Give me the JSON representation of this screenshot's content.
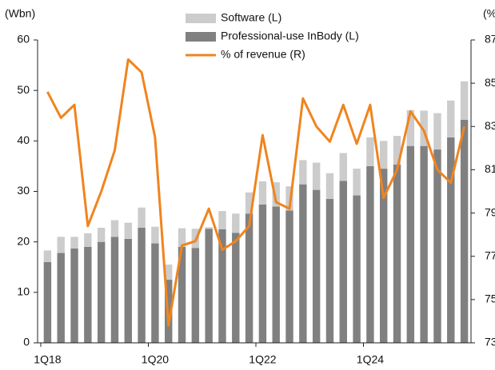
{
  "chart_data": {
    "type": "bar",
    "y_label": "(Wbn)",
    "y2_label": "(%",
    "categories": [
      "1Q18",
      null,
      null,
      null,
      null,
      null,
      null,
      null,
      "1Q20",
      null,
      null,
      null,
      null,
      null,
      null,
      null,
      "1Q22",
      null,
      null,
      null,
      null,
      null,
      null,
      null,
      "1Q24",
      null,
      null,
      null,
      null,
      null,
      null,
      null
    ],
    "stacked": true,
    "series": [
      {
        "name": "Professional-use InBody (L)",
        "color": "#808080",
        "type": "bar",
        "values": [
          16,
          17.8,
          18.7,
          19,
          20,
          21,
          20.6,
          22.8,
          19.7,
          12.5,
          19,
          18.8,
          22.6,
          22.5,
          21.8,
          25.6,
          27.4,
          27,
          26.2,
          31.4,
          30.3,
          28.5,
          32.1,
          29.2,
          35,
          34.5,
          35.3,
          39,
          39,
          38.3,
          40.7,
          44.2
        ]
      },
      {
        "name": "Software (L)",
        "color": "#cccccc",
        "type": "bar",
        "values": [
          2.3,
          3.2,
          2.3,
          2.7,
          2.8,
          3.3,
          3.2,
          4,
          3.3,
          3,
          3.7,
          3.8,
          0.3,
          3.6,
          3.8,
          4.2,
          4.6,
          4.8,
          4.8,
          4.8,
          5.4,
          5.1,
          5.5,
          5.3,
          5.7,
          5.5,
          5.7,
          7.1,
          7,
          7.2,
          7.3,
          7.6
        ]
      },
      {
        "name": "% of revenue (R)",
        "color": "#f0841e",
        "type": "line",
        "axis": "y2",
        "values": [
          84.6,
          83.4,
          84,
          78.4,
          80,
          81.9,
          86.1,
          85.5,
          82.5,
          73.8,
          77.5,
          77.7,
          79.2,
          77.3,
          77.7,
          78.4,
          82.6,
          79.5,
          79.2,
          84.3,
          83,
          82.3,
          84,
          82.2,
          84,
          79.7,
          81,
          83.7,
          82.8,
          81,
          80.4,
          83
        ]
      }
    ],
    "legend_order": [
      1,
      0,
      2
    ],
    "ylim": [
      0,
      60
    ],
    "yticks": [
      0,
      10,
      20,
      30,
      40,
      50,
      60
    ],
    "y2lim": [
      73,
      87
    ],
    "y2ticks": [
      73,
      75,
      77,
      79,
      81,
      83,
      85,
      87
    ]
  }
}
